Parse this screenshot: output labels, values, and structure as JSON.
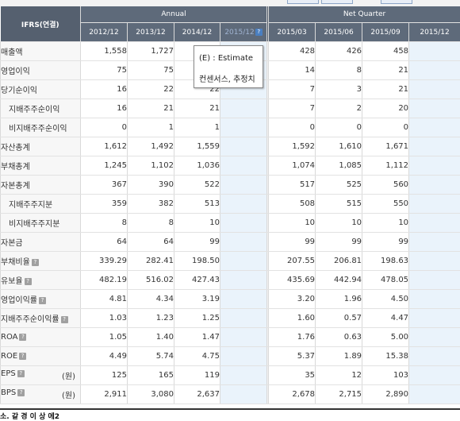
{
  "header": {
    "corner_label": "IFRS(연결)",
    "annual_label": "Annual",
    "quarter_label": "Net Quarter",
    "annual_years": [
      "2012/12",
      "2013/12",
      "2014/12",
      "2015/12"
    ],
    "quarter_periods": [
      "2015/03",
      "2015/06",
      "2015/09",
      "2015/12"
    ],
    "estimate_icon": "help-icon"
  },
  "tooltip": {
    "line1": "(E) : Estimate",
    "line2": "컨센서스, 추정치"
  },
  "rows": [
    {
      "label": "매출액",
      "sub": false,
      "info": false,
      "unit": "",
      "a": [
        "1,558",
        "1,727",
        "",
        ""
      ],
      "q": [
        "428",
        "426",
        "458",
        ""
      ]
    },
    {
      "label": "영업이익",
      "sub": false,
      "info": false,
      "unit": "",
      "a": [
        "75",
        "75",
        "",
        ""
      ],
      "q": [
        "14",
        "8",
        "21",
        ""
      ]
    },
    {
      "label": "당기순이익",
      "sub": false,
      "info": false,
      "unit": "",
      "a": [
        "16",
        "22",
        "22",
        ""
      ],
      "q": [
        "7",
        "3",
        "21",
        ""
      ]
    },
    {
      "label": "지배주주순이익",
      "sub": true,
      "info": false,
      "unit": "",
      "a": [
        "16",
        "21",
        "21",
        ""
      ],
      "q": [
        "7",
        "2",
        "20",
        ""
      ]
    },
    {
      "label": "비지배주주순이익",
      "sub": true,
      "info": false,
      "unit": "",
      "a": [
        "0",
        "1",
        "1",
        ""
      ],
      "q": [
        "0",
        "0",
        "0",
        ""
      ]
    },
    {
      "label": "자산총계",
      "sub": false,
      "info": false,
      "unit": "",
      "a": [
        "1,612",
        "1,492",
        "1,559",
        ""
      ],
      "q": [
        "1,592",
        "1,610",
        "1,671",
        ""
      ]
    },
    {
      "label": "부채총계",
      "sub": false,
      "info": false,
      "unit": "",
      "a": [
        "1,245",
        "1,102",
        "1,036",
        ""
      ],
      "q": [
        "1,074",
        "1,085",
        "1,112",
        ""
      ]
    },
    {
      "label": "자본총계",
      "sub": false,
      "info": false,
      "unit": "",
      "a": [
        "367",
        "390",
        "522",
        ""
      ],
      "q": [
        "517",
        "525",
        "560",
        ""
      ]
    },
    {
      "label": "지배주주지분",
      "sub": true,
      "info": false,
      "unit": "",
      "a": [
        "359",
        "382",
        "513",
        ""
      ],
      "q": [
        "508",
        "515",
        "550",
        ""
      ]
    },
    {
      "label": "비지배주주지분",
      "sub": true,
      "info": false,
      "unit": "",
      "a": [
        "8",
        "8",
        "10",
        ""
      ],
      "q": [
        "10",
        "10",
        "10",
        ""
      ]
    },
    {
      "label": "자본금",
      "sub": false,
      "info": false,
      "unit": "",
      "a": [
        "64",
        "64",
        "99",
        ""
      ],
      "q": [
        "99",
        "99",
        "99",
        ""
      ]
    },
    {
      "label": "부채비율",
      "sub": false,
      "info": true,
      "unit": "",
      "a": [
        "339.29",
        "282.41",
        "198.50",
        ""
      ],
      "q": [
        "207.55",
        "206.81",
        "198.63",
        ""
      ]
    },
    {
      "label": "유보율",
      "sub": false,
      "info": true,
      "unit": "",
      "a": [
        "482.19",
        "516.02",
        "427.43",
        ""
      ],
      "q": [
        "435.69",
        "442.94",
        "478.05",
        ""
      ]
    },
    {
      "label": "영업이익률",
      "sub": false,
      "info": true,
      "unit": "",
      "a": [
        "4.81",
        "4.34",
        "3.19",
        ""
      ],
      "q": [
        "3.20",
        "1.96",
        "4.50",
        ""
      ]
    },
    {
      "label": "지배주주순이익률",
      "sub": false,
      "info": true,
      "unit": "",
      "a": [
        "1.03",
        "1.23",
        "1.25",
        ""
      ],
      "q": [
        "1.60",
        "0.57",
        "4.47",
        ""
      ]
    },
    {
      "label": "ROA",
      "sub": false,
      "info": true,
      "unit": "",
      "a": [
        "1.05",
        "1.40",
        "1.47",
        ""
      ],
      "q": [
        "1.76",
        "0.63",
        "5.00",
        ""
      ]
    },
    {
      "label": "ROE",
      "sub": false,
      "info": true,
      "unit": "",
      "a": [
        "4.49",
        "5.74",
        "4.75",
        ""
      ],
      "q": [
        "5.37",
        "1.89",
        "15.38",
        ""
      ]
    },
    {
      "label": "EPS",
      "sub": false,
      "info": true,
      "unit": "(원)",
      "a": [
        "125",
        "165",
        "119",
        ""
      ],
      "q": [
        "35",
        "12",
        "103",
        ""
      ]
    },
    {
      "label": "BPS",
      "sub": false,
      "info": true,
      "unit": "(원)",
      "a": [
        "2,911",
        "3,080",
        "2,637",
        ""
      ],
      "q": [
        "2,678",
        "2,715",
        "2,890",
        ""
      ]
    }
  ],
  "footer": {
    "note": "소. 같 경 이 상 에2"
  }
}
